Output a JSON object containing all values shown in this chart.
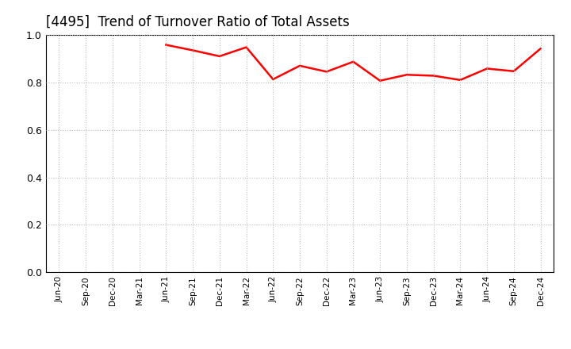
{
  "title": "[4495]  Trend of Turnover Ratio of Total Assets",
  "title_fontsize": 12,
  "title_fontweight": "normal",
  "line_color": "#FF0000",
  "line_width": 1.8,
  "background_color": "#FFFFFF",
  "ylim": [
    0.0,
    1.0
  ],
  "yticks": [
    0.0,
    0.2,
    0.4,
    0.6,
    0.8,
    1.0
  ],
  "grid_color": "#BBBBBB",
  "grid_linestyle": ":",
  "x_labels": [
    "Jun-20",
    "Sep-20",
    "Dec-20",
    "Mar-21",
    "Jun-21",
    "Sep-21",
    "Dec-21",
    "Mar-22",
    "Jun-22",
    "Sep-22",
    "Dec-22",
    "Mar-23",
    "Jun-23",
    "Sep-23",
    "Dec-23",
    "Mar-24",
    "Jun-24",
    "Sep-24",
    "Dec-24"
  ],
  "values": [
    null,
    null,
    null,
    null,
    0.958,
    0.935,
    0.91,
    0.948,
    0.813,
    0.87,
    0.845,
    0.887,
    0.807,
    0.832,
    0.828,
    0.81,
    0.858,
    0.847,
    0.942
  ]
}
